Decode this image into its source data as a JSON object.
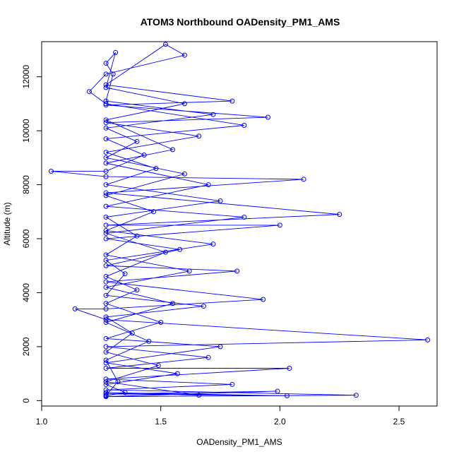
{
  "chart_data": {
    "type": "line",
    "title": "ATOM3 Northbound OADensity_PM1_AMS",
    "xlabel": "OADensity_PM1_AMS",
    "ylabel": "Altitude (m)",
    "xlim": [
      1.0,
      2.66
    ],
    "ylim": [
      -200,
      13300
    ],
    "x_ticks": [
      1.0,
      1.5,
      2.0,
      2.5
    ],
    "x_tick_labels": [
      "1.0",
      "1.5",
      "2.0",
      "2.5"
    ],
    "y_ticks": [
      0,
      2000,
      4000,
      6000,
      8000,
      10000,
      12000
    ],
    "y_tick_labels": [
      "0",
      "2000",
      "4000",
      "6000",
      "8000",
      "10000",
      "12000"
    ],
    "grid": false,
    "legend": "none",
    "line_color": "#0000ff",
    "marker": "open-circle",
    "series": [
      {
        "points": [
          [
            1.27,
            200
          ],
          [
            1.32,
            700
          ],
          [
            1.27,
            1500
          ],
          [
            1.45,
            2200
          ],
          [
            1.27,
            2900
          ],
          [
            1.55,
            3600
          ],
          [
            1.27,
            4200
          ],
          [
            1.62,
            4800
          ],
          [
            1.27,
            5400
          ],
          [
            1.4,
            6100
          ],
          [
            1.27,
            6800
          ],
          [
            1.75,
            7400
          ],
          [
            1.27,
            8000
          ],
          [
            1.48,
            8600
          ],
          [
            1.27,
            9200
          ],
          [
            1.66,
            9800
          ],
          [
            1.27,
            10300
          ],
          [
            1.95,
            10500
          ],
          [
            1.27,
            10950
          ],
          [
            1.8,
            11100
          ],
          [
            1.27,
            11700
          ],
          [
            1.52,
            13200
          ],
          [
            1.6,
            12800
          ],
          [
            1.27,
            12100
          ],
          [
            1.2,
            11450
          ],
          [
            1.27,
            11000
          ],
          [
            1.85,
            10200
          ],
          [
            1.27,
            9700
          ],
          [
            1.43,
            9100
          ],
          [
            1.27,
            8500
          ],
          [
            1.04,
            8500
          ],
          [
            1.27,
            8300
          ],
          [
            2.1,
            8200
          ],
          [
            1.27,
            7700
          ],
          [
            2.25,
            6900
          ],
          [
            1.27,
            6500
          ],
          [
            2.0,
            6500
          ],
          [
            1.27,
            6000
          ],
          [
            1.58,
            5600
          ],
          [
            1.27,
            5000
          ],
          [
            1.82,
            4800
          ],
          [
            1.27,
            4400
          ],
          [
            1.93,
            3750
          ],
          [
            1.27,
            3400
          ],
          [
            1.14,
            3400
          ],
          [
            1.27,
            3000
          ],
          [
            2.62,
            2250
          ],
          [
            1.27,
            2000
          ],
          [
            1.7,
            1600
          ],
          [
            1.27,
            1200
          ],
          [
            2.04,
            1200
          ],
          [
            1.27,
            800
          ],
          [
            1.8,
            600
          ],
          [
            1.27,
            400
          ],
          [
            2.32,
            200
          ],
          [
            1.27,
            150
          ],
          [
            1.99,
            350
          ],
          [
            1.27,
            250
          ],
          [
            2.03,
            180
          ],
          [
            1.27,
            300
          ],
          [
            1.66,
            200
          ],
          [
            1.27,
            700
          ],
          [
            1.49,
            1300
          ],
          [
            1.27,
            1800
          ],
          [
            1.38,
            2500
          ],
          [
            1.27,
            3100
          ],
          [
            1.68,
            3500
          ],
          [
            1.27,
            3900
          ],
          [
            1.35,
            4700
          ],
          [
            1.27,
            5200
          ],
          [
            1.72,
            5800
          ],
          [
            1.27,
            6300
          ],
          [
            1.47,
            7000
          ],
          [
            1.27,
            7600
          ],
          [
            1.6,
            8400
          ],
          [
            1.27,
            9000
          ],
          [
            1.4,
            9600
          ],
          [
            1.27,
            10100
          ],
          [
            1.72,
            10600
          ],
          [
            1.27,
            11100
          ],
          [
            1.3,
            12100
          ],
          [
            1.27,
            12500
          ],
          [
            1.31,
            12900
          ],
          [
            1.27,
            11600
          ],
          [
            1.6,
            11000
          ],
          [
            1.27,
            10400
          ],
          [
            1.55,
            9300
          ],
          [
            1.27,
            8800
          ],
          [
            1.7,
            8000
          ],
          [
            1.27,
            7200
          ],
          [
            1.85,
            6800
          ],
          [
            1.27,
            6200
          ],
          [
            1.52,
            5500
          ],
          [
            1.27,
            4600
          ],
          [
            1.4,
            4100
          ],
          [
            1.27,
            3600
          ],
          [
            1.5,
            2900
          ],
          [
            1.27,
            2300
          ],
          [
            1.75,
            2000
          ],
          [
            1.27,
            1400
          ],
          [
            1.57,
            1000
          ],
          [
            1.27,
            600
          ],
          [
            1.35,
            300
          ],
          [
            1.27,
            180
          ]
        ]
      }
    ]
  }
}
